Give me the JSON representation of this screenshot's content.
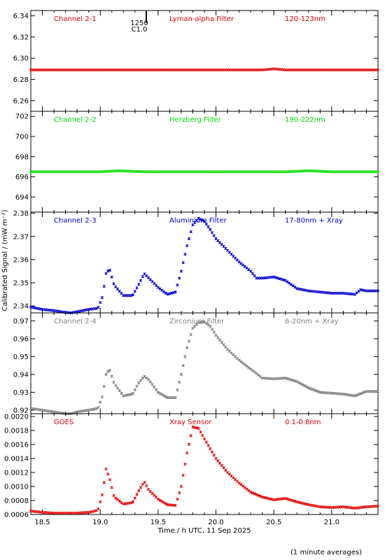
{
  "figure": {
    "x_axis_title": "Time / h UTC, 11 Sep 2025",
    "y_axis_title": "Calibrated Signal / (mW m⁻²)",
    "footnote": "(1 minute averages)",
    "marker_top_label": "1250",
    "marker_bottom_label": "C1.0"
  },
  "chart_data": [
    {
      "type": "scatter",
      "channel": "Channel 2-1",
      "filter": "Lyman-alpha Filter",
      "band": "120-123nm",
      "color": "#dd0000",
      "xlim": [
        18.4,
        21.4
      ],
      "ylim": [
        6.25,
        6.345
      ],
      "yticks": [
        6.26,
        6.28,
        6.3,
        6.32,
        6.34
      ],
      "ytick_labels": [
        "6.26",
        "6.28",
        "6.30",
        "6.32",
        "6.34"
      ],
      "x": [
        18.4,
        18.6,
        18.8,
        19.0,
        19.2,
        19.4,
        19.6,
        19.8,
        20.0,
        20.2,
        20.4,
        20.5,
        20.6,
        20.8,
        21.0,
        21.2,
        21.4
      ],
      "y": [
        6.289,
        6.289,
        6.289,
        6.289,
        6.289,
        6.289,
        6.289,
        6.289,
        6.289,
        6.289,
        6.289,
        6.29,
        6.289,
        6.289,
        6.289,
        6.289,
        6.289
      ]
    },
    {
      "type": "scatter",
      "channel": "Channel 2-2",
      "filter": "Herzberg Filter",
      "band": "190-222nm",
      "color": "#00dd00",
      "xlim": [
        18.4,
        21.4
      ],
      "ylim": [
        692.5,
        702.5
      ],
      "yticks": [
        694,
        696,
        698,
        700,
        702
      ],
      "ytick_labels": [
        "694",
        "696",
        "698",
        "700",
        "702"
      ],
      "x": [
        18.4,
        18.6,
        18.8,
        19.0,
        19.15,
        19.4,
        19.6,
        19.8,
        20.0,
        20.2,
        20.4,
        20.6,
        20.8,
        21.0,
        21.2,
        21.4
      ],
      "y": [
        696.5,
        696.5,
        696.5,
        696.5,
        696.6,
        696.5,
        696.5,
        696.5,
        696.5,
        696.5,
        696.5,
        696.5,
        696.6,
        696.5,
        696.5,
        696.5
      ]
    },
    {
      "type": "scatter",
      "channel": "Channel 2-3",
      "filter": "Aluminium Filter",
      "band": "17-80nm + Xray",
      "color": "#0000cc",
      "xlim": [
        18.4,
        21.4
      ],
      "ylim": [
        2.337,
        2.3805
      ],
      "yticks": [
        2.34,
        2.35,
        2.36,
        2.37,
        2.38
      ],
      "ytick_labels": [
        "2.34",
        "2.35",
        "2.36",
        "2.37",
        "2.38"
      ],
      "x": [
        18.4,
        18.5,
        18.6,
        18.7,
        18.75,
        18.8,
        18.9,
        18.98,
        19.02,
        19.05,
        19.08,
        19.12,
        19.2,
        19.28,
        19.33,
        19.38,
        19.42,
        19.5,
        19.58,
        19.65,
        19.7,
        19.75,
        19.8,
        19.85,
        19.9,
        19.95,
        20.0,
        20.1,
        20.2,
        20.3,
        20.35,
        20.4,
        20.5,
        20.6,
        20.7,
        20.8,
        20.9,
        21.0,
        21.1,
        21.2,
        21.25,
        21.3,
        21.4
      ],
      "y": [
        2.3395,
        2.3385,
        2.338,
        2.3372,
        2.337,
        2.3375,
        2.3385,
        2.339,
        2.344,
        2.354,
        2.356,
        2.349,
        2.3445,
        2.3445,
        2.349,
        2.354,
        2.352,
        2.348,
        2.345,
        2.346,
        2.355,
        2.366,
        2.375,
        2.3778,
        2.3765,
        2.373,
        2.369,
        2.364,
        2.359,
        2.355,
        2.352,
        2.352,
        2.3525,
        2.351,
        2.3475,
        2.3465,
        2.346,
        2.3455,
        2.3455,
        2.345,
        2.347,
        2.3465,
        2.3465
      ]
    },
    {
      "type": "scatter",
      "channel": "Channel 2-4",
      "filter": "Zirconium Filter",
      "band": "6-20nm + Xray",
      "color": "#808080",
      "xlim": [
        18.4,
        21.4
      ],
      "ylim": [
        0.918,
        0.9745
      ],
      "yticks": [
        0.92,
        0.93,
        0.94,
        0.95,
        0.96,
        0.97
      ],
      "ytick_labels": [
        "0.92",
        "0.93",
        "0.94",
        "0.95",
        "0.96",
        "0.97"
      ],
      "x": [
        18.4,
        18.5,
        18.6,
        18.7,
        18.75,
        18.8,
        18.9,
        18.98,
        19.02,
        19.05,
        19.08,
        19.12,
        19.2,
        19.28,
        19.33,
        19.38,
        19.42,
        19.5,
        19.58,
        19.65,
        19.7,
        19.75,
        19.8,
        19.85,
        19.9,
        19.95,
        20.0,
        20.1,
        20.2,
        20.3,
        20.4,
        20.5,
        20.6,
        20.7,
        20.8,
        20.9,
        21.0,
        21.1,
        21.2,
        21.3,
        21.4
      ],
      "y": [
        0.921,
        0.92,
        0.919,
        0.918,
        0.918,
        0.919,
        0.92,
        0.921,
        0.928,
        0.94,
        0.943,
        0.935,
        0.928,
        0.929,
        0.935,
        0.939,
        0.937,
        0.93,
        0.927,
        0.927,
        0.94,
        0.955,
        0.966,
        0.969,
        0.9695,
        0.967,
        0.962,
        0.954,
        0.948,
        0.943,
        0.938,
        0.9375,
        0.938,
        0.936,
        0.9325,
        0.93,
        0.9295,
        0.929,
        0.928,
        0.9305,
        0.9305
      ]
    },
    {
      "type": "scatter",
      "channel": "GOES",
      "filter": "Xray Sensor",
      "band": "0.1-0.8nm",
      "color": "#dd0000",
      "xlim": [
        18.4,
        21.4
      ],
      "ylim": [
        0.0006,
        0.00204
      ],
      "yticks": [
        0.0006,
        0.0008,
        0.001,
        0.0012,
        0.0014,
        0.0016,
        0.0018,
        0.002
      ],
      "ytick_labels": [
        "0.0006",
        "0.0008",
        "0.0010",
        "0.0012",
        "0.0014",
        "0.0016",
        "0.0018",
        "0.0020"
      ],
      "x": [
        18.4,
        18.5,
        18.6,
        18.7,
        18.8,
        18.9,
        18.98,
        19.02,
        19.05,
        19.08,
        19.12,
        19.2,
        19.28,
        19.33,
        19.38,
        19.42,
        19.5,
        19.58,
        19.65,
        19.7,
        19.75,
        19.8,
        19.85,
        19.9,
        20.0,
        20.1,
        20.2,
        20.3,
        20.4,
        20.5,
        20.6,
        20.7,
        20.8,
        20.9,
        21.0,
        21.1,
        21.2,
        21.3,
        21.4
      ],
      "y": [
        0.00065,
        0.00063,
        0.00062,
        0.00062,
        0.00062,
        0.00063,
        0.00066,
        0.0009,
        0.00125,
        0.00112,
        0.00085,
        0.00075,
        0.00077,
        0.00093,
        0.00107,
        0.00095,
        0.00082,
        0.00074,
        0.00073,
        0.001,
        0.00148,
        0.00185,
        0.00183,
        0.00168,
        0.0014,
        0.0012,
        0.00105,
        0.00092,
        0.00085,
        0.00081,
        0.00083,
        0.00078,
        0.00074,
        0.00071,
        0.0007,
        0.00071,
        0.00069,
        0.00071,
        0.00072
      ]
    }
  ],
  "x_ticks": [
    18.5,
    19.0,
    19.5,
    20.0,
    20.5,
    21.0
  ],
  "x_tick_labels": [
    "18.5",
    "19.0",
    "19.5",
    "20.0",
    "20.5",
    "21.0"
  ]
}
